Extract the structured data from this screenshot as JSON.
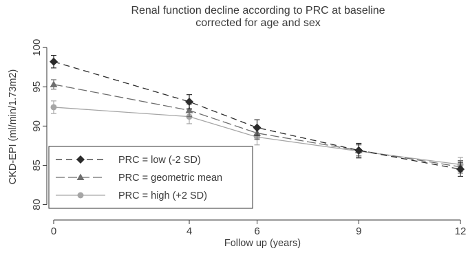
{
  "chart_data": {
    "type": "line",
    "title_line1": "Renal function decline according to PRC at baseline",
    "title_line2": "corrected for age and sex",
    "xlabel": "Follow up (years)",
    "ylabel": "CKD-EPI (ml/min/1.73m2)",
    "x": [
      0,
      4,
      6,
      9,
      12
    ],
    "x_ticks": [
      0,
      4,
      6,
      9,
      12
    ],
    "y_ticks": [
      80,
      85,
      90,
      95,
      100
    ],
    "xlim": [
      0,
      12
    ],
    "ylim": [
      79,
      101.5
    ],
    "grid": false,
    "legend_position": "bottom-left",
    "series": [
      {
        "name": "PRC = low (-2 SD)",
        "color": "#2b2b2b",
        "marker": "diamond",
        "dash": "9,6",
        "values": [
          98.2,
          93.1,
          89.8,
          86.9,
          84.5
        ],
        "errors": [
          0.8,
          0.9,
          1.0,
          0.9,
          0.9
        ]
      },
      {
        "name": "PRC = geometric mean",
        "color": "#6e6e6e",
        "marker": "triangle",
        "dash": "13,5",
        "values": [
          95.3,
          92.0,
          89.1,
          86.9,
          84.8
        ],
        "errors": [
          0.6,
          0.8,
          0.8,
          0.7,
          0.8
        ]
      },
      {
        "name": "PRC = high (+2 SD)",
        "color": "#a6a6a6",
        "marker": "circle",
        "dash": "",
        "values": [
          92.4,
          91.2,
          88.6,
          86.8,
          85.1
        ],
        "errors": [
          0.8,
          0.9,
          1.0,
          0.9,
          0.9
        ]
      }
    ]
  }
}
